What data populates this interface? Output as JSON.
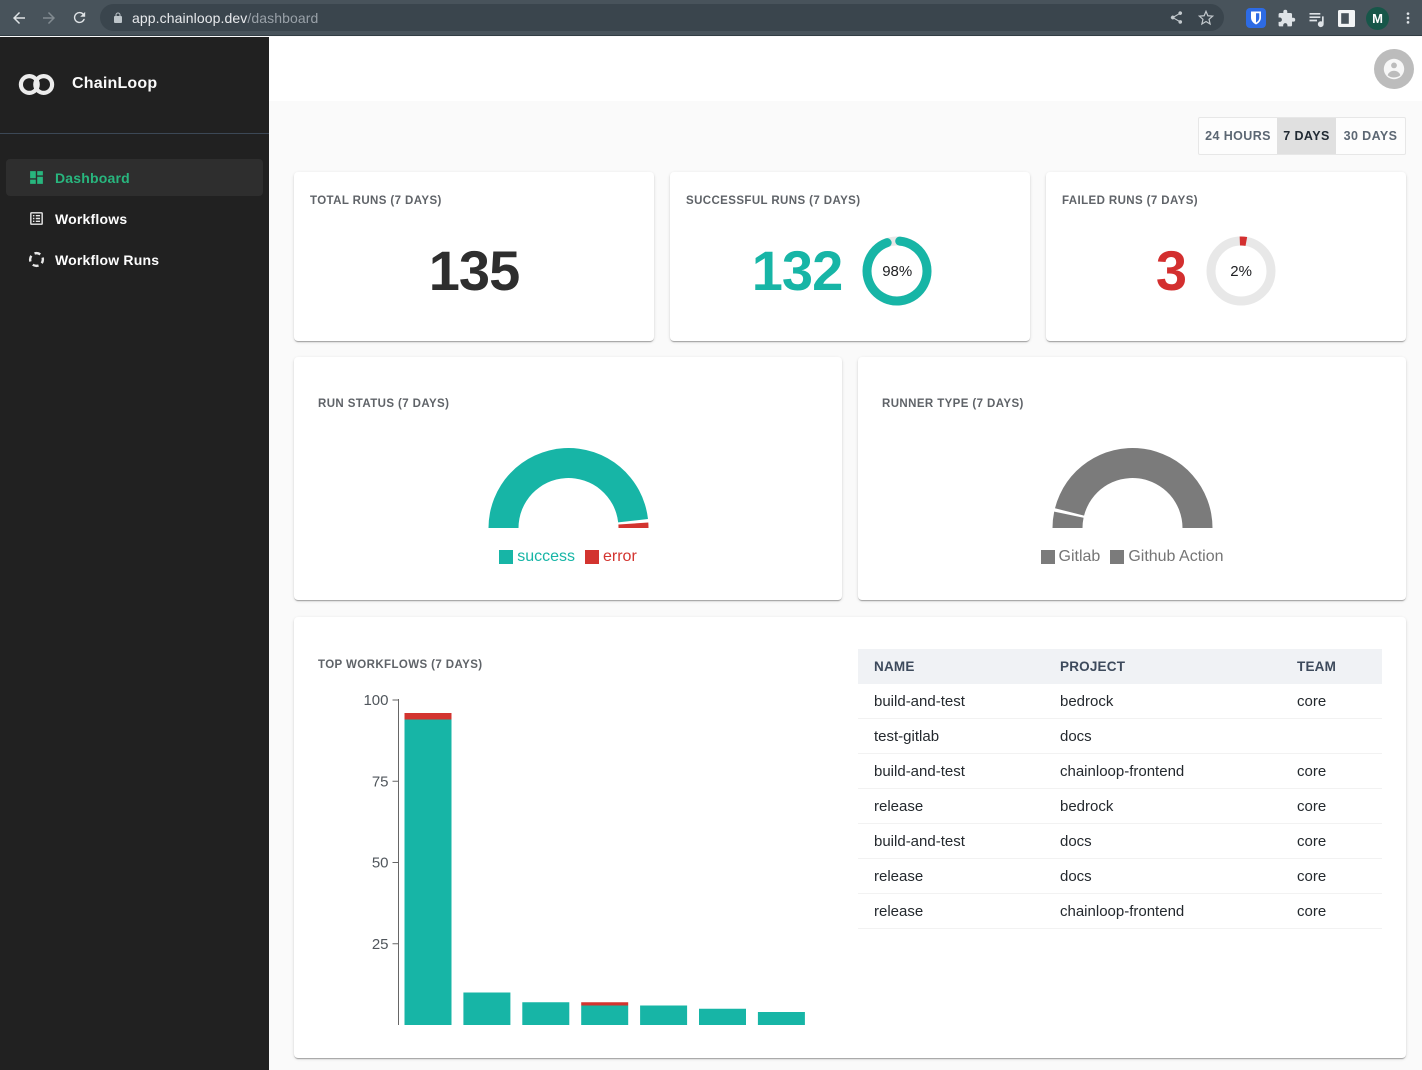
{
  "browser": {
    "url_host": "app.chainloop.dev",
    "url_path": "/dashboard",
    "profile_initial": "M"
  },
  "sidebar": {
    "brand": "ChainLoop",
    "items": [
      {
        "label": "Dashboard",
        "icon": "dashboard-icon",
        "active": true
      },
      {
        "label": "Workflows",
        "icon": "workflows-icon",
        "active": false
      },
      {
        "label": "Workflow Runs",
        "icon": "workflow-runs-icon",
        "active": false
      }
    ]
  },
  "time_range": {
    "options": [
      {
        "label": "24 HOURS",
        "selected": false
      },
      {
        "label": "7 DAYS",
        "selected": true
      },
      {
        "label": "30 DAYS",
        "selected": false
      }
    ]
  },
  "stat_cards": [
    {
      "title": "TOTAL RUNS (7 DAYS)",
      "value": "135",
      "value_color": "#2e2e2e",
      "donut": null
    },
    {
      "title": "SUCCESSFUL RUNS (7 DAYS)",
      "value": "132",
      "value_color": "#17b5a6",
      "donut": {
        "percent": 98,
        "label": "98%",
        "color": "#17b5a6"
      }
    },
    {
      "title": "FAILED RUNS (7 DAYS)",
      "value": "3",
      "value_color": "#d32f2f",
      "donut": {
        "percent": 2,
        "label": "2%",
        "color": "#d32f2f"
      }
    }
  ],
  "colors": {
    "success": "#17b5a6",
    "error": "#d3342f",
    "neutral": "#7b7b7b",
    "ring_base": "#e8e8e8"
  },
  "chart_data": [
    {
      "id": "run_status",
      "type": "pie",
      "shape": "half-donut",
      "title": "RUN STATUS (7 DAYS)",
      "legend_position": "bottom",
      "colored_legend_text": true,
      "series": [
        {
          "name": "success",
          "value": 132,
          "color": "#17b5a6"
        },
        {
          "name": "error",
          "value": 3,
          "color": "#d3342f"
        }
      ]
    },
    {
      "id": "runner_type",
      "type": "pie",
      "shape": "half-donut",
      "title": "RUNNER TYPE (7 DAYS)",
      "legend_position": "bottom",
      "colored_legend_text": false,
      "legend_text_color": "#757575",
      "series": [
        {
          "name": "Gitlab",
          "value": 9,
          "color": "#7b7b7b"
        },
        {
          "name": "Github Action",
          "value": 126,
          "color": "#7b7b7b"
        }
      ]
    },
    {
      "id": "top_workflows",
      "type": "bar",
      "stacked": true,
      "title": "TOP WORKFLOWS (7 DAYS)",
      "xlabel": "",
      "ylabel": "",
      "ylim": [
        0,
        100
      ],
      "yticks": [
        25,
        50,
        75,
        100
      ],
      "grid": false,
      "categories": [
        "",
        "",
        "",
        "",
        "",
        "",
        ""
      ],
      "series": [
        {
          "name": "success",
          "color": "#17b5a6",
          "values": [
            94,
            10,
            7,
            6,
            6,
            5,
            4
          ]
        },
        {
          "name": "error",
          "color": "#d3342f",
          "values": [
            2,
            0,
            0,
            1,
            0,
            0,
            0
          ]
        }
      ]
    },
    {
      "id": "successful_ratio",
      "type": "donut",
      "percent": 98,
      "label": "98%",
      "color": "#17b5a6"
    },
    {
      "id": "failed_ratio",
      "type": "donut",
      "percent": 2,
      "label": "2%",
      "color": "#d32f2f"
    }
  ],
  "top_workflows_table": {
    "columns": [
      "NAME",
      "PROJECT",
      "TEAM"
    ],
    "rows": [
      [
        "build-and-test",
        "bedrock",
        "core"
      ],
      [
        "test-gitlab",
        "docs",
        ""
      ],
      [
        "build-and-test",
        "chainloop-frontend",
        "core"
      ],
      [
        "release",
        "bedrock",
        "core"
      ],
      [
        "build-and-test",
        "docs",
        "core"
      ],
      [
        "release",
        "docs",
        "core"
      ],
      [
        "release",
        "chainloop-frontend",
        "core"
      ]
    ]
  }
}
